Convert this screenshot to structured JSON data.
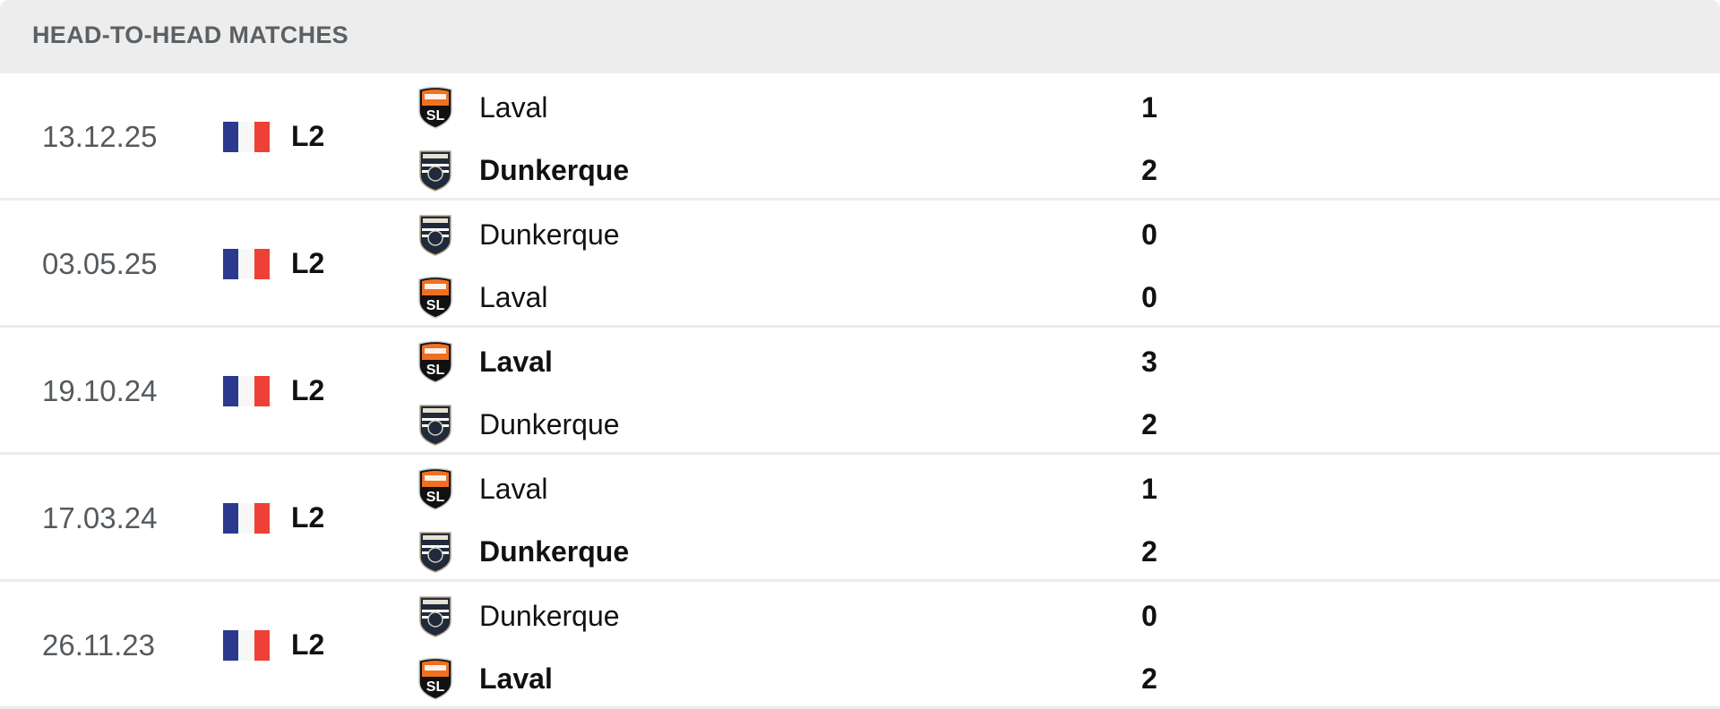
{
  "header": {
    "title": "HEAD-TO-HEAD MATCHES"
  },
  "colors": {
    "flag_blue": "#2b3a8f",
    "flag_white": "#f7f7f7",
    "flag_red": "#ee4037",
    "laval_orange": "#f07020",
    "dunkerque_navy": "#1f2a3c"
  },
  "matches": [
    {
      "date": "13.12.25",
      "country_flag": "france-flag",
      "league": "L2",
      "home": {
        "name": "Laval",
        "crest": "laval-crest",
        "score": "1",
        "winner": false
      },
      "away": {
        "name": "Dunkerque",
        "crest": "dunkerque-crest",
        "score": "2",
        "winner": true
      }
    },
    {
      "date": "03.05.25",
      "country_flag": "france-flag",
      "league": "L2",
      "home": {
        "name": "Dunkerque",
        "crest": "dunkerque-crest",
        "score": "0",
        "winner": false
      },
      "away": {
        "name": "Laval",
        "crest": "laval-crest",
        "score": "0",
        "winner": false
      }
    },
    {
      "date": "19.10.24",
      "country_flag": "france-flag",
      "league": "L2",
      "home": {
        "name": "Laval",
        "crest": "laval-crest",
        "score": "3",
        "winner": true
      },
      "away": {
        "name": "Dunkerque",
        "crest": "dunkerque-crest",
        "score": "2",
        "winner": false
      }
    },
    {
      "date": "17.03.24",
      "country_flag": "france-flag",
      "league": "L2",
      "home": {
        "name": "Laval",
        "crest": "laval-crest",
        "score": "1",
        "winner": false
      },
      "away": {
        "name": "Dunkerque",
        "crest": "dunkerque-crest",
        "score": "2",
        "winner": true
      }
    },
    {
      "date": "26.11.23",
      "country_flag": "france-flag",
      "league": "L2",
      "home": {
        "name": "Dunkerque",
        "crest": "dunkerque-crest",
        "score": "0",
        "winner": false
      },
      "away": {
        "name": "Laval",
        "crest": "laval-crest",
        "score": "2",
        "winner": true
      }
    }
  ]
}
